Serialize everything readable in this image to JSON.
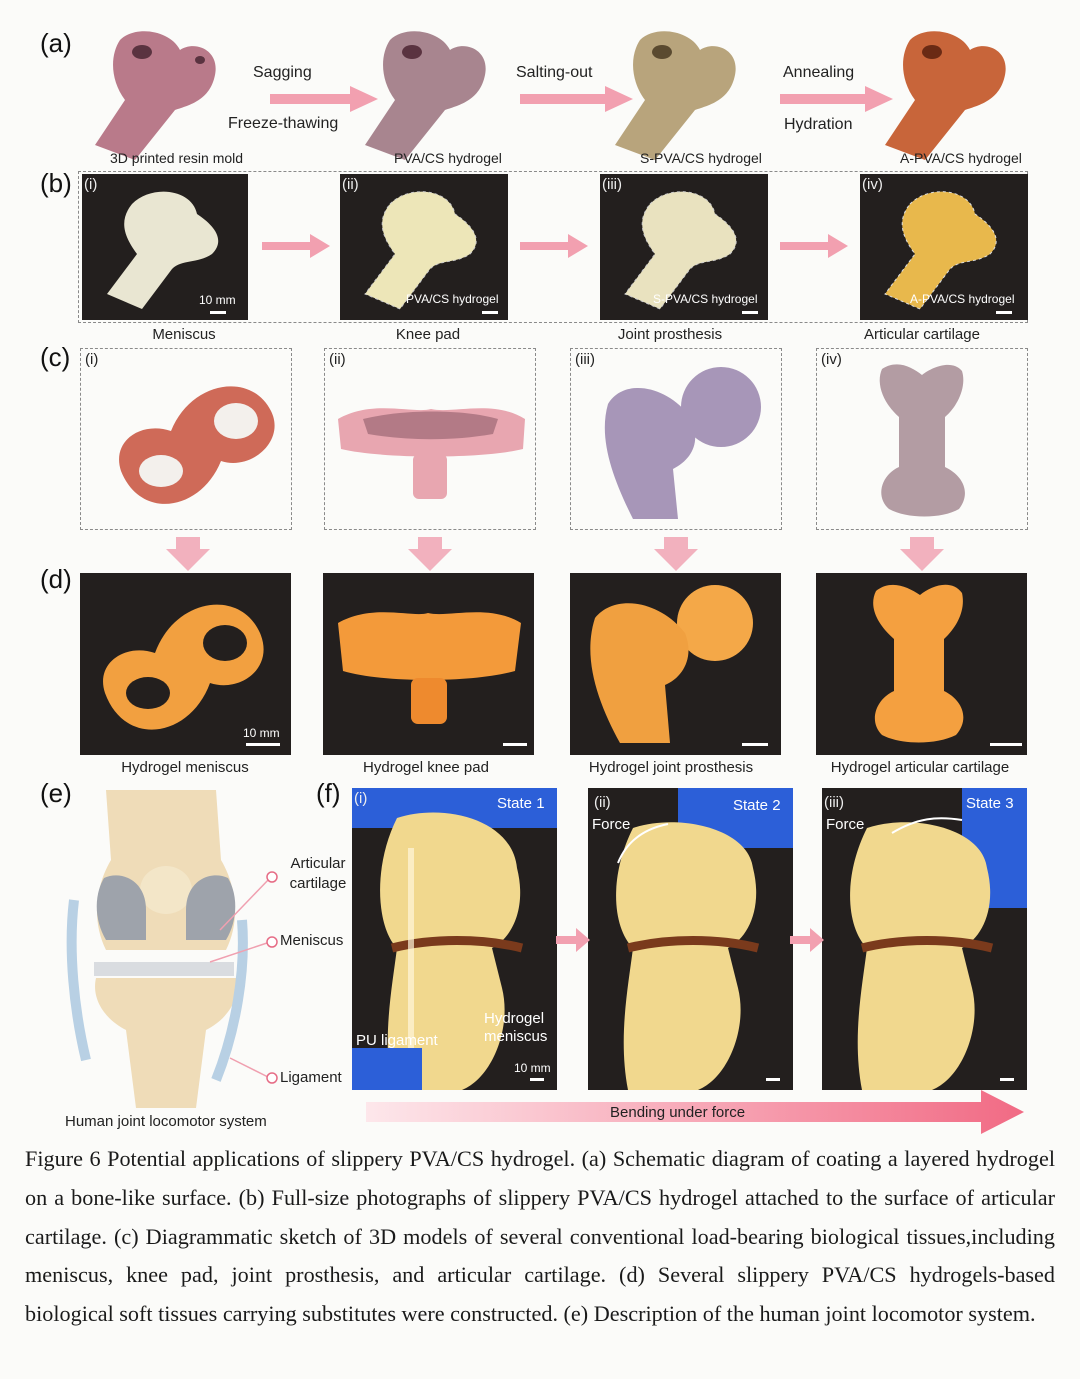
{
  "panel_labels": {
    "a": "(a)",
    "b": "(b)",
    "c": "(c)",
    "d": "(d)",
    "e": "(e)",
    "f": "(f)"
  },
  "roman": [
    "(i)",
    "(ii)",
    "(iii)",
    "(iv)"
  ],
  "panel_a": {
    "molds": [
      "3D printed resin mold",
      "PVA/CS hydrogel",
      "S-PVA/CS hydrogel",
      "A-PVA/CS hydrogel"
    ],
    "steps": [
      {
        "top": "Sagging",
        "bottom": "Freeze-thawing"
      },
      {
        "top": "Salting-out",
        "bottom": ""
      },
      {
        "top": "Annealing",
        "bottom": "Hydration"
      }
    ],
    "colors": [
      "#b97a8a",
      "#a8858f",
      "#b8a47c",
      "#c8653a"
    ]
  },
  "panel_b": {
    "captions": [
      "Meniscus",
      "Knee pad",
      "Joint prosthesis",
      "Articular cartilage"
    ],
    "photo_labels": [
      "",
      "PVA/CS hydrogel",
      "S-PVA/CS hydrogel",
      "A-PVA/CS hydrogel"
    ],
    "scale": "10 mm"
  },
  "panel_c": {
    "colors": [
      "#cf6a58",
      "#e8a6b0",
      "#a796b8",
      "#b39ca3"
    ]
  },
  "panel_d": {
    "captions": [
      "Hydrogel meniscus",
      "Hydrogel knee pad",
      "Hydrogel joint prosthesis",
      "Hydrogel articular cartilage"
    ],
    "scale": "10 mm"
  },
  "panel_e": {
    "labels": [
      "Articular cartilage",
      "Meniscus",
      "Ligament"
    ],
    "caption": "Human joint locomotor system"
  },
  "panel_f": {
    "states": [
      "State 1",
      "State 2",
      "State 3"
    ],
    "force": "Force",
    "labels": {
      "pu": "PU ligament",
      "hydrogel": "Hydrogel meniscus",
      "scale": "10 mm"
    },
    "arrow_text": "Bending under force"
  },
  "caption": "Figure 6 Potential applications of slippery PVA/CS hydrogel. (a) Schematic diagram of coating a layered hydrogel on a bone-like surface. (b) Full-size photographs of slippery PVA/CS hydrogel attached to the surface of articular cartilage. (c) Diagrammatic sketch of 3D models of several conventional load-bearing biological tissues,including meniscus, knee pad, joint prosthesis, and articular cartilage. (d) Several slippery PVA/CS hydrogels-based biological soft tissues carrying substitutes were constructed. (e) Description of the human joint locomotor system."
}
